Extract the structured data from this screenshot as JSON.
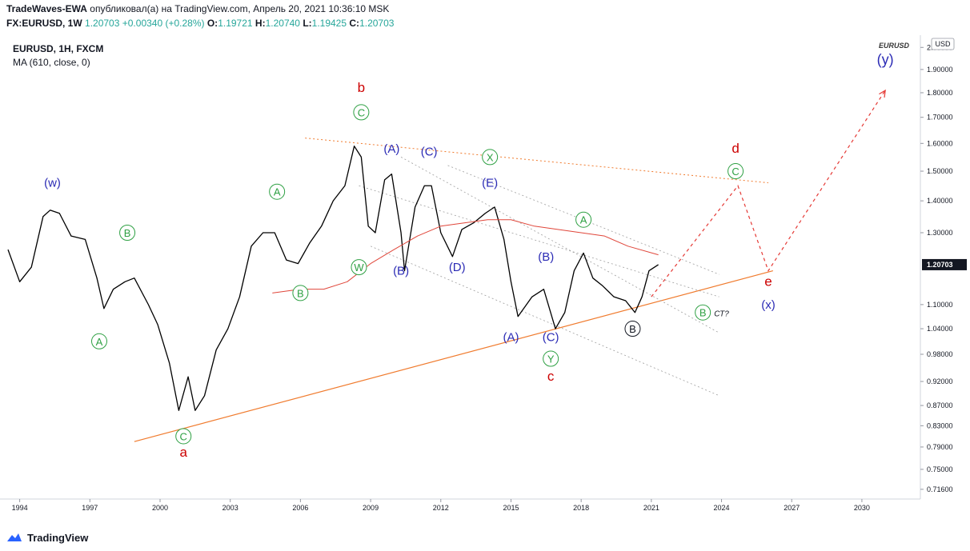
{
  "header": {
    "author": "TradeWaves-EWA",
    "published_text": "опубликовал(а) на TradingView.com, Апрель 20, 2021 10:36:10 MSK",
    "symbol": "FX:EURUSD, 1W",
    "last": "1.20703",
    "change": "+0.00340 (+0.28%)",
    "o_label": "O:",
    "o": "1.19721",
    "h_label": "H:",
    "h": "1.20740",
    "l_label": "L:",
    "l": "1.19425",
    "c_label": "C:",
    "c": "1.20703"
  },
  "legend": {
    "line1": "EURUSD, 1H, FXCM",
    "line2": "MA (610, close, 0)",
    "symbol_tag": "EURUSD"
  },
  "footer": {
    "brand": "TradingView"
  },
  "colors": {
    "price": "#000000",
    "ma": "#e0463a",
    "trendline": "#f07b2e",
    "green_label": "#2ea043",
    "blue_label": "#2b2bb5",
    "red_label": "#cc0000",
    "projection": "#e53935",
    "last_price_bg": "#131722"
  },
  "chart_data": {
    "type": "line",
    "title": "EURUSD, 1H, FXCM",
    "ylabel": "USD",
    "ylim": [
      0.7,
      2.05
    ],
    "log_scale": true,
    "xlim": [
      1993.5,
      2032.5
    ],
    "x_ticks": [
      "1994",
      "1997",
      "2000",
      "2003",
      "2006",
      "2009",
      "2012",
      "2015",
      "2018",
      "2021",
      "2024",
      "2027",
      "2030"
    ],
    "y_ticks": [
      "0.71600",
      "0.75000",
      "0.79000",
      "0.83000",
      "0.87000",
      "0.92000",
      "0.98000",
      "1.04000",
      "1.10000",
      "1.30000",
      "1.40000",
      "1.50000",
      "1.60000",
      "1.70000",
      "1.80000",
      "1.90000",
      "2.00000"
    ],
    "last_price_label": "1.20703",
    "series": [
      {
        "name": "EURUSD",
        "x": [
          1993.5,
          1994.0,
          1994.5,
          1995.0,
          1995.3,
          1995.7,
          1996.2,
          1996.8,
          1997.3,
          1997.6,
          1998.0,
          1998.5,
          1998.9,
          1999.5,
          1999.9,
          2000.4,
          2000.8,
          2001.2,
          2001.5,
          2001.9,
          2002.4,
          2002.9,
          2003.4,
          2003.9,
          2004.4,
          2004.9,
          2005.4,
          2005.9,
          2006.4,
          2006.9,
          2007.4,
          2007.9,
          2008.3,
          2008.6,
          2008.9,
          2009.2,
          2009.6,
          2009.9,
          2010.3,
          2010.45,
          2010.9,
          2011.3,
          2011.6,
          2012.0,
          2012.5,
          2012.9,
          2013.4,
          2013.9,
          2014.3,
          2014.7,
          2015.0,
          2015.3,
          2015.9,
          2016.4,
          2016.9,
          2017.3,
          2017.7,
          2018.1,
          2018.5,
          2018.9,
          2019.4,
          2019.9,
          2020.3,
          2020.6,
          2020.9,
          2021.3
        ],
        "values": [
          1.25,
          1.16,
          1.2,
          1.35,
          1.37,
          1.36,
          1.29,
          1.28,
          1.17,
          1.09,
          1.14,
          1.16,
          1.17,
          1.1,
          1.05,
          0.96,
          0.86,
          0.93,
          0.86,
          0.89,
          0.99,
          1.04,
          1.12,
          1.26,
          1.3,
          1.3,
          1.22,
          1.21,
          1.27,
          1.32,
          1.4,
          1.45,
          1.59,
          1.55,
          1.32,
          1.3,
          1.47,
          1.49,
          1.3,
          1.19,
          1.38,
          1.45,
          1.45,
          1.3,
          1.23,
          1.31,
          1.33,
          1.36,
          1.38,
          1.28,
          1.16,
          1.07,
          1.12,
          1.14,
          1.04,
          1.08,
          1.19,
          1.24,
          1.17,
          1.15,
          1.12,
          1.11,
          1.08,
          1.12,
          1.19,
          1.207
        ]
      },
      {
        "name": "MA (610, close, 0)",
        "x": [
          2004.8,
          2006.0,
          2007.0,
          2008.0,
          2009.0,
          2010.0,
          2011.0,
          2012.0,
          2013.0,
          2014.0,
          2015.0,
          2016.0,
          2017.0,
          2018.0,
          2019.0,
          2020.0,
          2021.3
        ],
        "values": [
          1.13,
          1.14,
          1.14,
          1.16,
          1.21,
          1.25,
          1.29,
          1.32,
          1.33,
          1.34,
          1.34,
          1.32,
          1.31,
          1.3,
          1.29,
          1.26,
          1.235
        ]
      }
    ],
    "lines": [
      {
        "kind": "trendline",
        "x": [
          1998.9,
          2026.2
        ],
        "values": [
          0.8,
          1.19
        ]
      },
      {
        "kind": "upper-channel",
        "x": [
          2006.2,
          2026.0
        ],
        "values": [
          1.62,
          1.46
        ]
      },
      {
        "kind": "projection",
        "x": [
          2021.0,
          2024.7,
          2026.0,
          2031.0
        ],
        "values": [
          1.12,
          1.45,
          1.19,
          1.81
        ]
      },
      {
        "kind": "inner-channel",
        "x": [
          2008.5,
          2023.9
        ],
        "values": [
          1.45,
          1.12
        ]
      },
      {
        "kind": "inner-channel",
        "x": [
          2009.0,
          2023.9
        ],
        "values": [
          1.26,
          0.89
        ]
      },
      {
        "kind": "inner-channel",
        "x": [
          2010.3,
          2023.9
        ],
        "values": [
          1.55,
          1.03
        ]
      },
      {
        "kind": "inner-channel",
        "x": [
          2012.3,
          2023.9
        ],
        "values": [
          1.52,
          1.18
        ]
      }
    ],
    "annotations": [
      {
        "text": "(w)",
        "x": 1995.4,
        "y": 1.46,
        "color": "blue"
      },
      {
        "text": "B",
        "x": 1998.6,
        "y": 1.3,
        "color": "green",
        "circled": true
      },
      {
        "text": "A",
        "x": 1997.4,
        "y": 1.01,
        "color": "green",
        "circled": true
      },
      {
        "text": "C",
        "x": 2001.0,
        "y": 0.81,
        "color": "green",
        "circled": true
      },
      {
        "text": "a",
        "x": 2001.0,
        "y": 0.78,
        "color": "red"
      },
      {
        "text": "A",
        "x": 2005.0,
        "y": 1.43,
        "color": "green",
        "circled": true
      },
      {
        "text": "B",
        "x": 2006.0,
        "y": 1.13,
        "color": "green",
        "circled": true
      },
      {
        "text": "b",
        "x": 2008.6,
        "y": 1.82,
        "color": "red"
      },
      {
        "text": "C",
        "x": 2008.6,
        "y": 1.72,
        "color": "green",
        "circled": true
      },
      {
        "text": "W",
        "x": 2008.5,
        "y": 1.2,
        "color": "green",
        "circled": true
      },
      {
        "text": "(A)",
        "x": 2009.9,
        "y": 1.58,
        "color": "blue"
      },
      {
        "text": "(C)",
        "x": 2011.5,
        "y": 1.57,
        "color": "blue"
      },
      {
        "text": "(B)",
        "x": 2010.3,
        "y": 1.19,
        "color": "blue"
      },
      {
        "text": "(D)",
        "x": 2012.7,
        "y": 1.2,
        "color": "blue"
      },
      {
        "text": "X",
        "x": 2014.1,
        "y": 1.55,
        "color": "green",
        "circled": true
      },
      {
        "text": "(E)",
        "x": 2014.1,
        "y": 1.46,
        "color": "blue"
      },
      {
        "text": "(A)",
        "x": 2015.0,
        "y": 1.02,
        "color": "blue"
      },
      {
        "text": "(B)",
        "x": 2016.5,
        "y": 1.23,
        "color": "blue"
      },
      {
        "text": "(C)",
        "x": 2016.7,
        "y": 1.02,
        "color": "blue"
      },
      {
        "text": "Y",
        "x": 2016.7,
        "y": 0.97,
        "color": "green",
        "circled": true
      },
      {
        "text": "c",
        "x": 2016.7,
        "y": 0.93,
        "color": "red"
      },
      {
        "text": "A",
        "x": 2018.1,
        "y": 1.34,
        "color": "green",
        "circled": true
      },
      {
        "text": "B",
        "x": 2020.2,
        "y": 1.04,
        "color": "black",
        "circled": true
      },
      {
        "text": "B",
        "x": 2023.2,
        "y": 1.08,
        "color": "green",
        "circled": true
      },
      {
        "text": "СТ?",
        "x": 2024.0,
        "y": 1.08,
        "color": "black"
      },
      {
        "text": "d",
        "x": 2024.6,
        "y": 1.58,
        "color": "red"
      },
      {
        "text": "C",
        "x": 2024.6,
        "y": 1.5,
        "color": "green",
        "circled": true
      },
      {
        "text": "e",
        "x": 2026.0,
        "y": 1.16,
        "color": "red"
      },
      {
        "text": "(x)",
        "x": 2026.0,
        "y": 1.1,
        "color": "blue"
      },
      {
        "text": "(y)",
        "x": 2031.0,
        "y": 1.94,
        "color": "blue"
      }
    ]
  }
}
